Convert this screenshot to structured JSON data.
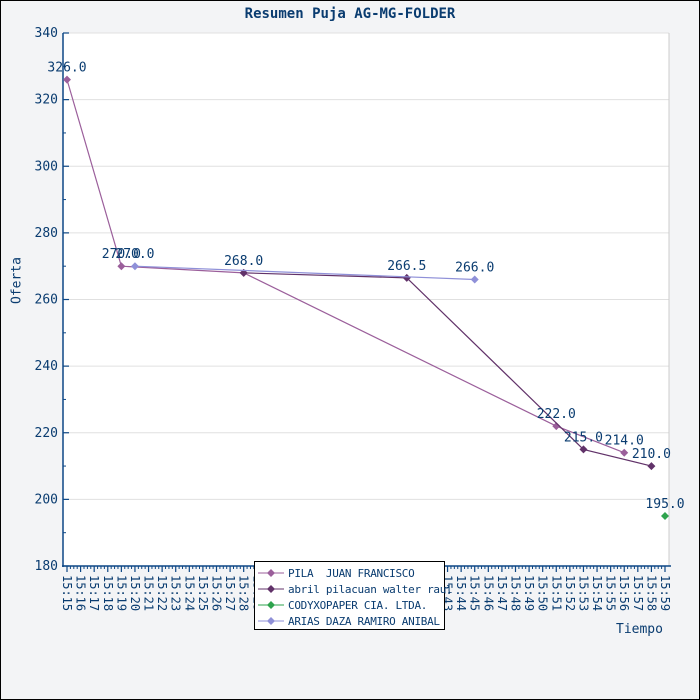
{
  "page": {
    "background": "#F3F4F6",
    "border_color": "#000000"
  },
  "title": {
    "text": "Resumen Puja AG-MG-FOLDER",
    "color": "#0A3C70"
  },
  "axes": {
    "x_title": "Tiempo",
    "y_title": "Oferta",
    "axis_color": "#0D4785",
    "label_color": "#0A3C70",
    "gridline_color": "#E0E0E0",
    "plot_background": "#FFFFFF"
  },
  "chart_data": {
    "type": "line",
    "title": "Resumen Puja AG-MG-FOLDER",
    "xlabel": "Tiempo",
    "ylabel": "Oferta",
    "ylim": [
      180,
      340
    ],
    "y_ticks": [
      340,
      320,
      300,
      280,
      260,
      240,
      220,
      200,
      180
    ],
    "x_ticks": [
      "15:15",
      "15:16",
      "15:17",
      "15:18",
      "15:19",
      "15:20",
      "15:21",
      "15:22",
      "15:23",
      "15:24",
      "15:25",
      "15:26",
      "15:27",
      "15:28",
      "15:29",
      "15:30",
      "15:31",
      "15:32",
      "15:33",
      "15:34",
      "15:35",
      "15:36",
      "15:37",
      "15:38",
      "15:39",
      "15:40",
      "15:41",
      "15:42",
      "15:43",
      "15:44",
      "15:45",
      "15:46",
      "15:47",
      "15:48",
      "15:49",
      "15:50",
      "15:51",
      "15:52",
      "15:53",
      "15:54",
      "15:55",
      "15:56",
      "15:57",
      "15:58",
      "15:59"
    ],
    "grid": "horizontal-only",
    "legend_position": "bottom-center",
    "series": [
      {
        "name": "PILA  JUAN FRANCISCO",
        "color": "#9B5F9B",
        "points": [
          {
            "t": "15:15",
            "v": 326.0,
            "label": "326.0"
          },
          {
            "t": "15:19",
            "v": 270.0,
            "label": "270.0"
          },
          {
            "t": "15:28",
            "v": 268.0,
            "label": "268.0"
          },
          {
            "t": "15:51",
            "v": 222.0,
            "label": "222.0"
          },
          {
            "t": "15:56",
            "v": 214.0,
            "label": "214.0"
          }
        ]
      },
      {
        "name": "abril pilacuan walter raul",
        "color": "#613269",
        "points": [
          {
            "t": "15:28",
            "v": 268.0,
            "label": ""
          },
          {
            "t": "15:40",
            "v": 266.5,
            "label": "266.5"
          },
          {
            "t": "15:53",
            "v": 215.0,
            "label": "215.0"
          },
          {
            "t": "15:58",
            "v": 210.0,
            "label": "210.0"
          }
        ]
      },
      {
        "name": "CODYXOPAPER CIA. LTDA.",
        "color": "#2EA34D",
        "points": [
          {
            "t": "15:59",
            "v": 195.0,
            "label": "195.0"
          }
        ]
      },
      {
        "name": "ARIAS DAZA RAMIRO ANIBAL",
        "color": "#8F90D8",
        "points": [
          {
            "t": "15:20",
            "v": 270.0,
            "label": "270.0"
          },
          {
            "t": "15:45",
            "v": 266.0,
            "label": "266.0"
          }
        ]
      }
    ]
  }
}
